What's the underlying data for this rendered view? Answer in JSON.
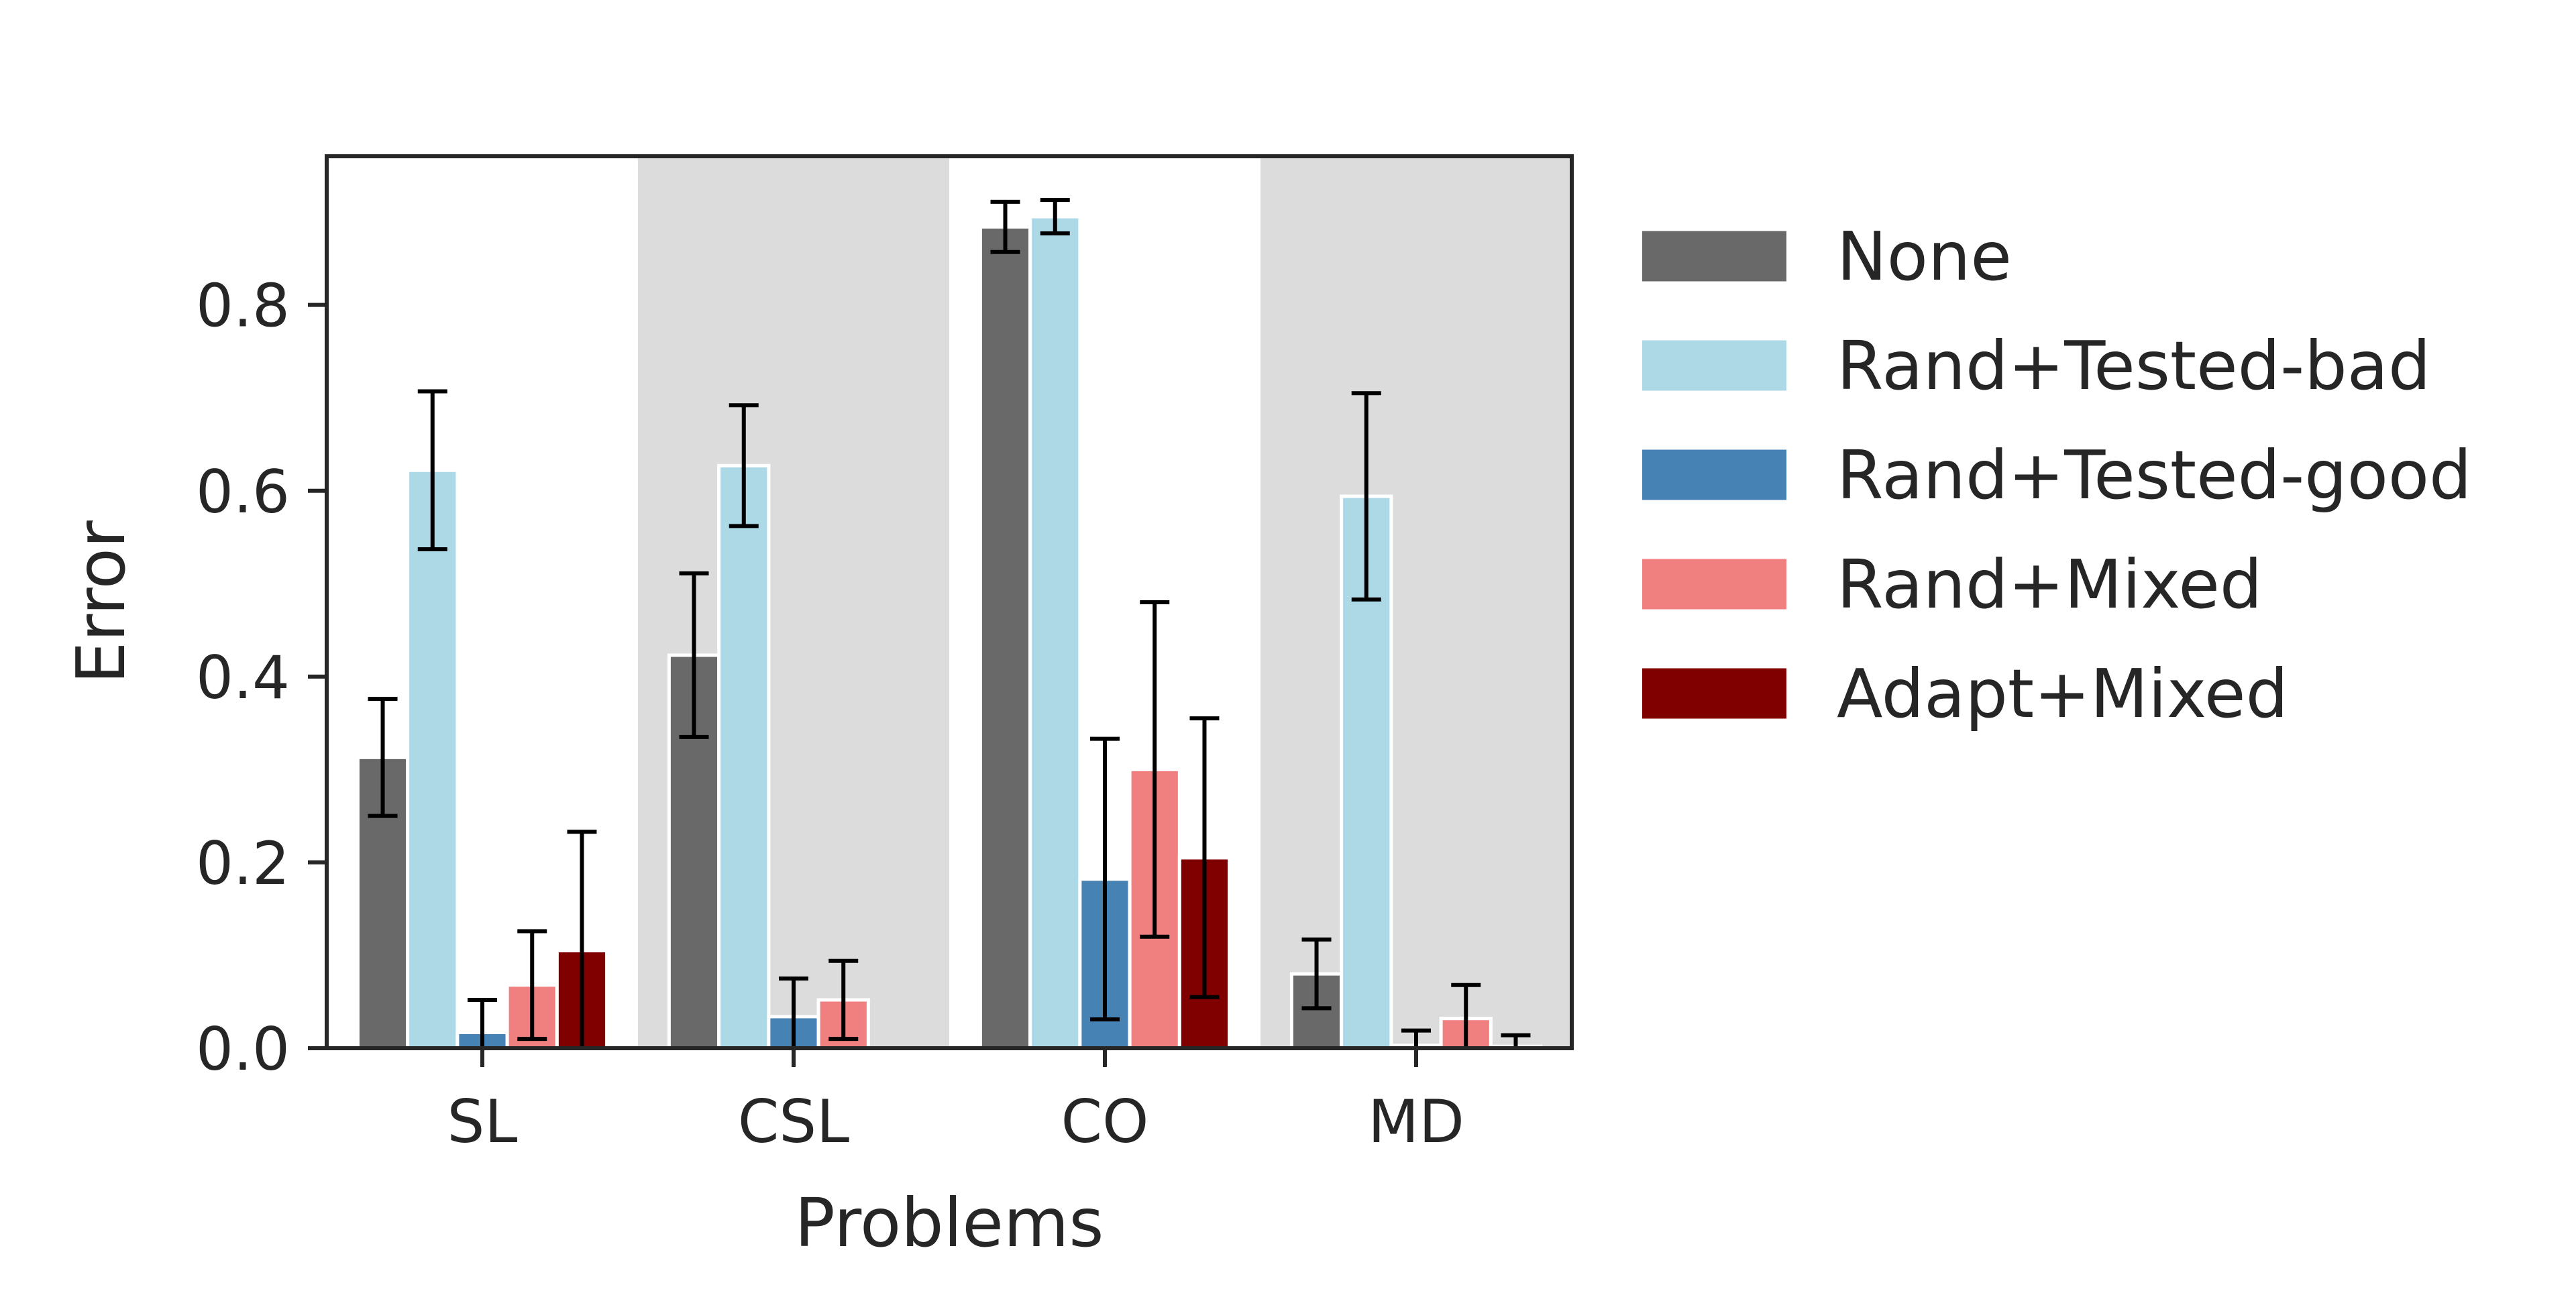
{
  "chart_data": {
    "type": "bar",
    "xlabel": "Problems",
    "ylabel": "Error",
    "categories": [
      "SL",
      "CSL",
      "CO",
      "MD"
    ],
    "ylim": [
      0,
      0.96
    ],
    "yticks": [
      "0.0",
      "0.2",
      "0.4",
      "0.6",
      "0.8"
    ],
    "yticks_values": [
      0.0,
      0.2,
      0.4,
      0.6,
      0.8
    ],
    "category_shading": [
      "white",
      "lightgray",
      "white",
      "lightgray"
    ],
    "legend_position": "outside right, top",
    "grid": false,
    "series": [
      {
        "name": "None",
        "color": "#696969",
        "values": [
          0.313,
          0.423,
          0.884,
          0.08
        ],
        "err": [
          0.063,
          0.088,
          0.027,
          0.037
        ]
      },
      {
        "name": "Rand+Tested-bad",
        "color": "#add8e6",
        "values": [
          0.622,
          0.627,
          0.895,
          0.594
        ],
        "err": [
          0.085,
          0.065,
          0.018,
          0.111
        ]
      },
      {
        "name": "Rand+Tested-good",
        "color": "#4682b4",
        "values": [
          0.017,
          0.034,
          0.182,
          0.003
        ],
        "err": [
          0.035,
          0.041,
          0.151,
          0.016
        ]
      },
      {
        "name": "Rand+Mixed",
        "color": "#f08080",
        "values": [
          0.068,
          0.052,
          0.3,
          0.032
        ],
        "err": [
          0.058,
          0.042,
          0.18,
          0.036
        ]
      },
      {
        "name": "Adapt+Mixed",
        "color": "#800000",
        "values": [
          0.105,
          0.0,
          0.205,
          0.002
        ],
        "err": [
          0.128,
          0.0,
          0.15,
          0.012
        ]
      }
    ]
  }
}
